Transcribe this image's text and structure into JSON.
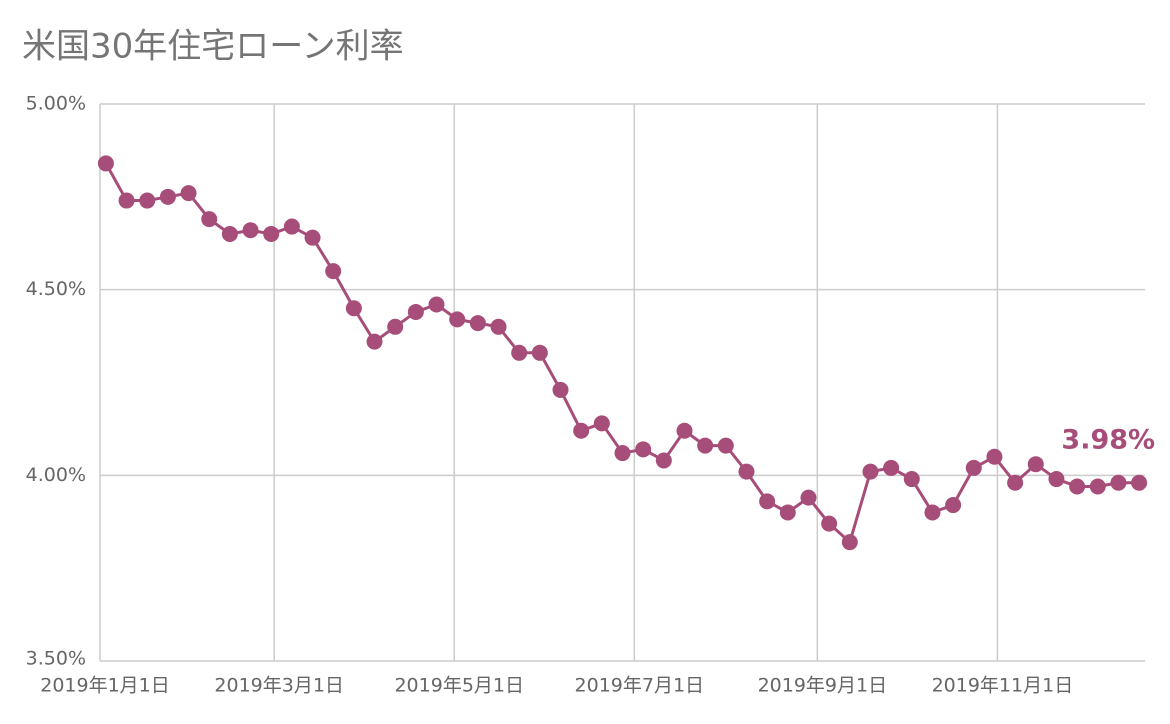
{
  "chart_data": {
    "type": "line",
    "title": "米国30年住宅ローン利率",
    "x": [
      "2019-01-03",
      "2019-01-10",
      "2019-01-17",
      "2019-01-24",
      "2019-01-31",
      "2019-02-07",
      "2019-02-14",
      "2019-02-21",
      "2019-02-28",
      "2019-03-07",
      "2019-03-14",
      "2019-03-21",
      "2019-03-28",
      "2019-04-04",
      "2019-04-11",
      "2019-04-18",
      "2019-04-25",
      "2019-05-02",
      "2019-05-09",
      "2019-05-16",
      "2019-05-23",
      "2019-05-30",
      "2019-06-06",
      "2019-06-13",
      "2019-06-20",
      "2019-06-27",
      "2019-07-04",
      "2019-07-11",
      "2019-07-18",
      "2019-07-25",
      "2019-08-01",
      "2019-08-08",
      "2019-08-15",
      "2019-08-22",
      "2019-08-29",
      "2019-09-05",
      "2019-09-12",
      "2019-09-19",
      "2019-09-26",
      "2019-10-03",
      "2019-10-10",
      "2019-10-17",
      "2019-10-24",
      "2019-10-31",
      "2019-11-07",
      "2019-11-14",
      "2019-11-21",
      "2019-11-28",
      "2019-12-05",
      "2019-12-12",
      "2019-12-19"
    ],
    "series": [
      {
        "color": "#a64d79",
        "values": [
          4.84,
          4.74,
          4.74,
          4.75,
          4.76,
          4.69,
          4.65,
          4.66,
          4.65,
          4.67,
          4.64,
          4.55,
          4.45,
          4.36,
          4.4,
          4.44,
          4.46,
          4.42,
          4.41,
          4.4,
          4.33,
          4.33,
          4.23,
          4.12,
          4.14,
          4.06,
          4.07,
          4.04,
          4.12,
          4.08,
          4.08,
          4.01,
          3.93,
          3.9,
          3.94,
          3.87,
          3.82,
          4.01,
          4.02,
          3.99,
          3.9,
          3.92,
          4.02,
          4.05,
          3.98,
          4.03,
          3.99,
          3.97,
          3.97,
          3.98,
          3.98
        ],
        "value_labels": [
          null,
          null,
          null,
          null,
          null,
          null,
          null,
          null,
          null,
          null,
          null,
          null,
          null,
          null,
          null,
          null,
          null,
          null,
          null,
          null,
          null,
          null,
          null,
          null,
          null,
          null,
          null,
          null,
          null,
          null,
          null,
          null,
          null,
          null,
          null,
          null,
          null,
          null,
          null,
          null,
          null,
          null,
          null,
          null,
          null,
          null,
          null,
          null,
          null,
          null,
          "3.98%"
        ]
      }
    ],
    "xlim": [
      "2019-01-01",
      "2019-12-21"
    ],
    "xticks": [
      {
        "value": "2019-01-01",
        "label": "2019年1月1日"
      },
      {
        "value": "2019-03-01",
        "label": "2019年3月1日"
      },
      {
        "value": "2019-05-01",
        "label": "2019年5月1日"
      },
      {
        "value": "2019-07-01",
        "label": "2019年7月1日"
      },
      {
        "value": "2019-09-01",
        "label": "2019年9月1日"
      },
      {
        "value": "2019-11-01",
        "label": "2019年11月1日"
      }
    ],
    "ylim": [
      3.5,
      5.0
    ],
    "yticks": [
      {
        "value": 3.5,
        "label": "3.50%"
      },
      {
        "value": 4.0,
        "label": "4.00%"
      },
      {
        "value": 4.5,
        "label": "4.50%"
      },
      {
        "value": 5.0,
        "label": "5.00%"
      }
    ],
    "grid": true
  }
}
